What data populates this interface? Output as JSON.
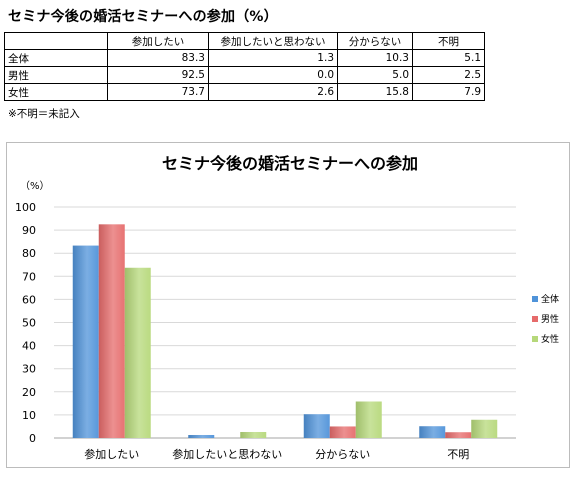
{
  "page_title": "セミナ今後の婚活セミナーへの参加（%）",
  "table": {
    "headers": [
      "",
      "参加したい",
      "参加したいと思わない",
      "分からない",
      "不明"
    ],
    "rows": [
      {
        "label": "全体",
        "values": [
          "83.3",
          "1.3",
          "10.3",
          "5.1"
        ]
      },
      {
        "label": "男性",
        "values": [
          "92.5",
          "0.0",
          "5.0",
          "2.5"
        ]
      },
      {
        "label": "女性",
        "values": [
          "73.7",
          "2.6",
          "15.8",
          "7.9"
        ]
      }
    ]
  },
  "note": "※不明＝未記入",
  "chart_data": {
    "type": "bar",
    "title": "セミナ今後の婚活セミナーへの参加",
    "ylabel": "（%）",
    "xlabel": "",
    "categories": [
      "参加したい",
      "参加したいと思わない",
      "分からない",
      "不明"
    ],
    "series": [
      {
        "name": "全体",
        "values": [
          83.3,
          1.3,
          10.3,
          5.1
        ],
        "color": "#4f93d9"
      },
      {
        "name": "男性",
        "values": [
          92.5,
          0.0,
          5.0,
          2.5
        ],
        "color": "#e66b6b"
      },
      {
        "name": "女性",
        "values": [
          73.7,
          2.6,
          15.8,
          7.9
        ],
        "color": "#b6d87a"
      }
    ],
    "ylim": [
      0,
      100
    ],
    "yticks": [
      0,
      10,
      20,
      30,
      40,
      50,
      60,
      70,
      80,
      90,
      100
    ],
    "grid": true,
    "legend": "right"
  }
}
